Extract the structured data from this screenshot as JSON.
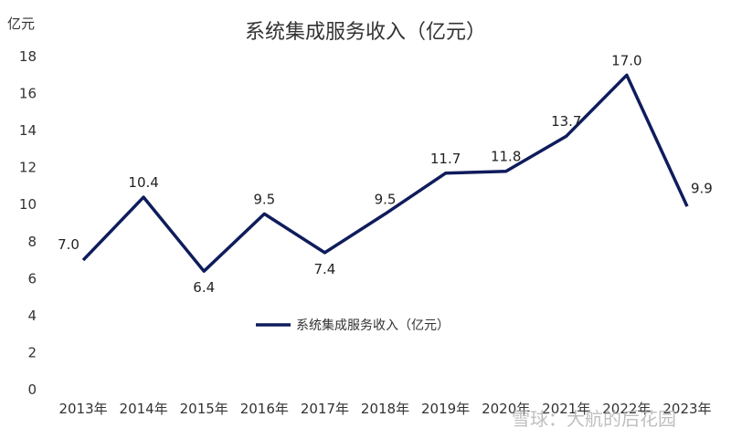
{
  "chart_data": {
    "type": "line",
    "title": "系统集成服务收入（亿元）",
    "y_unit_label": "亿元",
    "categories": [
      "2013年",
      "2014年",
      "2015年",
      "2016年",
      "2017年",
      "2018年",
      "2019年",
      "2020年",
      "2021年",
      "2022年",
      "2023年"
    ],
    "series": [
      {
        "name": "系统集成服务收入（亿元）",
        "values": [
          7.0,
          10.4,
          6.4,
          9.5,
          7.4,
          9.5,
          11.7,
          11.8,
          13.7,
          17.0,
          9.9
        ],
        "labels": [
          "7.0",
          "10.4",
          "6.4",
          "9.5",
          "7.4",
          "9.5",
          "11.7",
          "11.8",
          "13.7",
          "17.0",
          "9.9"
        ],
        "color": "#0f1c5c"
      }
    ],
    "ylim": [
      0,
      18
    ],
    "yticks": [
      0,
      2,
      4,
      6,
      8,
      10,
      12,
      14,
      16,
      18
    ],
    "grid": false,
    "legend_position": "center"
  },
  "watermark": "雪球：大航的后花园"
}
